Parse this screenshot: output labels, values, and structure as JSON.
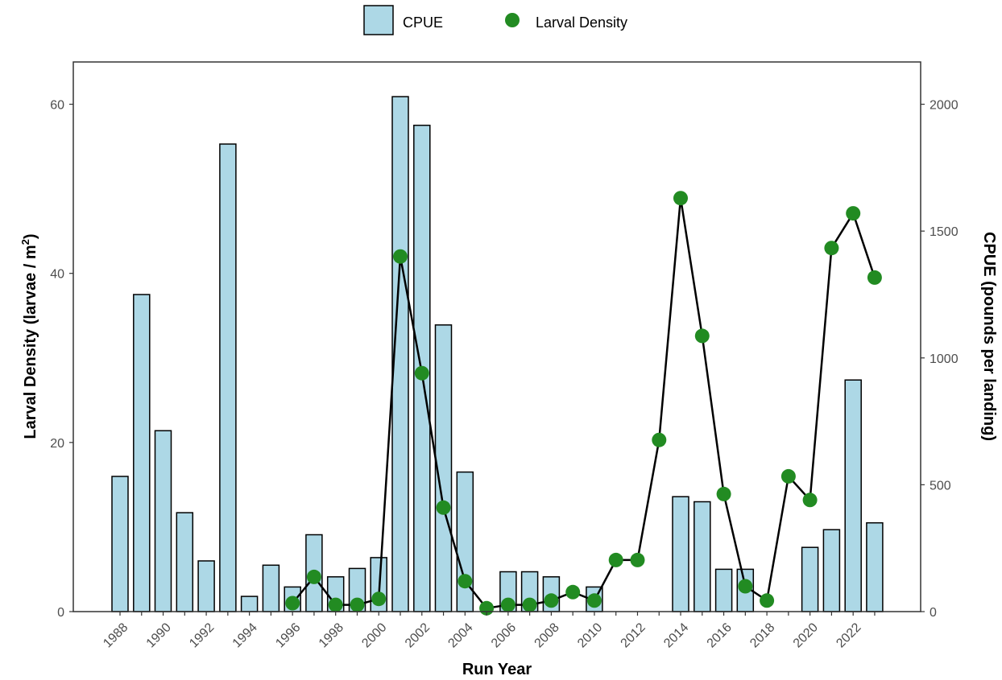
{
  "chart_data": {
    "type": "bar",
    "x_title": "Run Year",
    "y_left_title_main": "Larval Density (larvae / m",
    "y_left_title_sup": "2",
    "y_left_title_close": ")",
    "y_right_title": "CPUE (pounds per landing)",
    "y_left_range": [
      0,
      65
    ],
    "y_right_range": [
      0,
      2166.67
    ],
    "y_left_ticks": [
      0,
      20,
      40,
      60
    ],
    "y_right_ticks": [
      0,
      500,
      1000,
      1500,
      2000
    ],
    "x_tick_labels": [
      "1988",
      "1990",
      "1992",
      "1994",
      "1996",
      "1998",
      "2000",
      "2002",
      "2004",
      "2006",
      "2008",
      "2010",
      "2012",
      "2014",
      "2016",
      "2018",
      "2020",
      "2022"
    ],
    "grid": false,
    "legend_position": "top",
    "years": [
      1988,
      1989,
      1990,
      1991,
      1992,
      1993,
      1994,
      1995,
      1996,
      1997,
      1998,
      1999,
      2000,
      2001,
      2002,
      2003,
      2004,
      2005,
      2006,
      2007,
      2008,
      2009,
      2010,
      2011,
      2012,
      2013,
      2014,
      2015,
      2016,
      2017,
      2018,
      2019,
      2020,
      2021,
      2022,
      2023
    ],
    "series": [
      {
        "name": "CPUE",
        "kind": "bar",
        "axis": "right",
        "color": "#add8e6",
        "values": [
          533,
          1250,
          713,
          390,
          200,
          1843,
          60,
          183,
          97,
          303,
          137,
          170,
          213,
          2030,
          1917,
          1130,
          550,
          null,
          157,
          157,
          137,
          null,
          97,
          null,
          null,
          null,
          453,
          433,
          167,
          167,
          null,
          null,
          253,
          323,
          913,
          350
        ]
      },
      {
        "name": "Larval Density",
        "kind": "point-line",
        "axis": "left",
        "color": "#228b22",
        "values": [
          null,
          null,
          null,
          null,
          null,
          null,
          null,
          null,
          1.0,
          4.1,
          0.8,
          0.8,
          1.5,
          42.0,
          28.2,
          12.3,
          3.6,
          0.4,
          0.8,
          0.8,
          1.3,
          2.3,
          1.3,
          6.1,
          6.1,
          20.3,
          48.9,
          32.6,
          13.9,
          3.0,
          1.3,
          16.0,
          13.2,
          43.0,
          47.1,
          39.5
        ]
      }
    ]
  }
}
